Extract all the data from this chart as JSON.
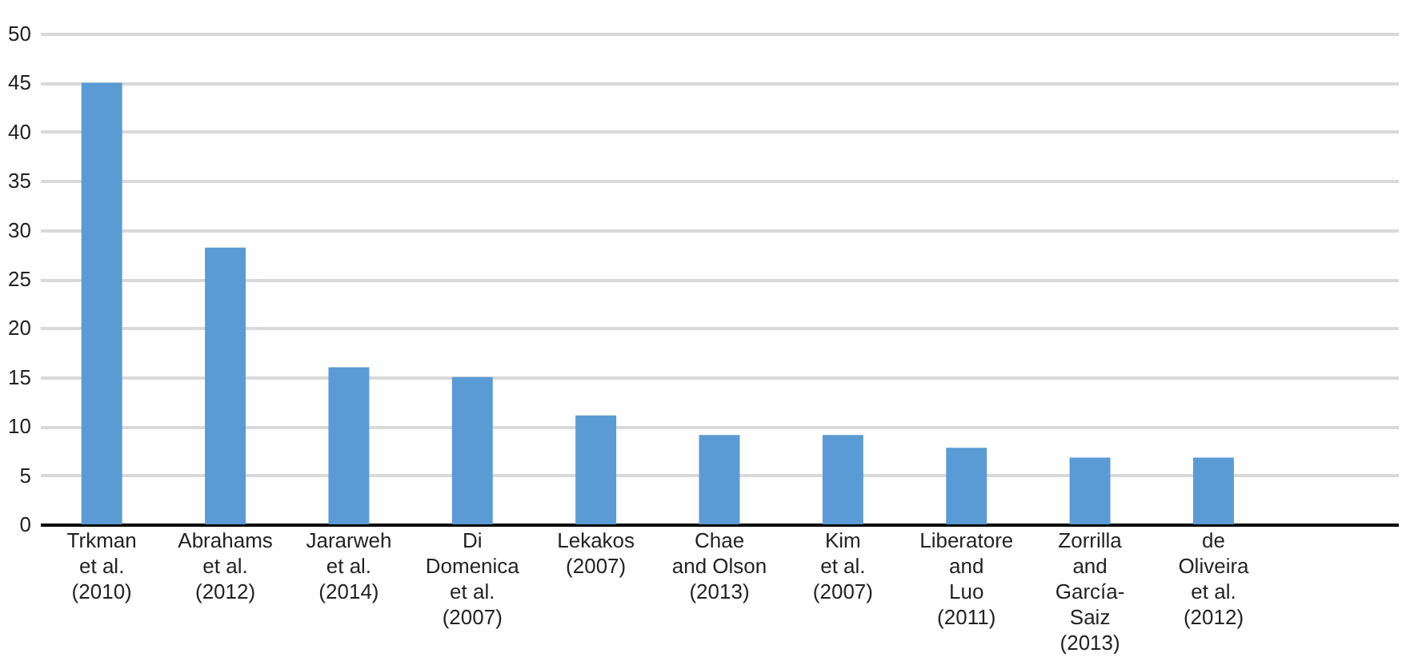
{
  "chart_data": {
    "type": "bar",
    "categories": [
      "Trkman\net al.\n(2010)",
      "Abrahams\net al.\n(2012)",
      "Jararweh\net al.\n(2014)",
      "Di\nDomenica\net al.\n(2007)",
      "Lekakos\n(2007)",
      "Chae\nand Olson\n(2013)",
      "Kim\net al.\n(2007)",
      "Liberatore\nand\nLuo\n(2011)",
      "Zorrilla\nand\nGarcía-\nSaiz\n(2013)",
      "de\nOliveira\net al.\n(2012)",
      null
    ],
    "values": [
      45,
      28.2,
      16,
      15,
      11.1,
      9.1,
      9.1,
      7.8,
      6.8,
      6.8,
      null
    ],
    "color": "#5b9bd5",
    "ylim": [
      0,
      50
    ],
    "yticks": [
      0,
      5,
      10,
      15,
      20,
      25,
      30,
      35,
      40,
      45,
      50
    ],
    "grid": "y"
  }
}
